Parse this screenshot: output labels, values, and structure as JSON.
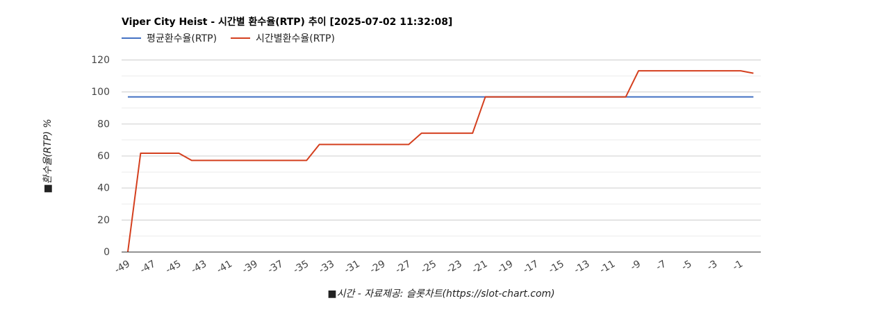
{
  "chart_data": {
    "type": "line",
    "title": "Viper City Heist - 시간별 환수율(RTP) 추이 [2025-07-02 11:32:08]",
    "ylabel": "■환수율(RTP) %",
    "xlabel": "■시간 - 자료제공: 슬롯차트(https://slot-chart.com)",
    "ylim": [
      0,
      120
    ],
    "yticks": [
      0,
      20,
      40,
      60,
      80,
      100,
      120
    ],
    "grid": true,
    "legend_position": "top-left",
    "x": [
      -49,
      -48,
      -47,
      -46,
      -45,
      -44,
      -43,
      -42,
      -41,
      -40,
      -39,
      -38,
      -37,
      -36,
      -35,
      -34,
      -33,
      -32,
      -31,
      -30,
      -29,
      -28,
      -27,
      -26,
      -25,
      -24,
      -23,
      -22,
      -21,
      -20,
      -19,
      -18,
      -17,
      -16,
      -15,
      -14,
      -13,
      -12,
      -11,
      -10,
      -9,
      -8,
      -7,
      -6,
      -5,
      -4,
      -3,
      -2,
      -1,
      0
    ],
    "xtick_labels": [
      "-49",
      "-47",
      "-45",
      "-43",
      "-41",
      "-39",
      "-37",
      "-35",
      "-33",
      "-31",
      "-29",
      "-27",
      "-25",
      "-23",
      "-21",
      "-19",
      "-17",
      "-15",
      "-13",
      "-11",
      "-9",
      "-7",
      "-5",
      "-3",
      "-1"
    ],
    "series": [
      {
        "name": "평균환수율(RTP)",
        "color": "#4472c4",
        "values": [
          96.7,
          96.7,
          96.7,
          96.7,
          96.7,
          96.7,
          96.7,
          96.7,
          96.7,
          96.7,
          96.7,
          96.7,
          96.7,
          96.7,
          96.7,
          96.7,
          96.7,
          96.7,
          96.7,
          96.7,
          96.7,
          96.7,
          96.7,
          96.7,
          96.7,
          96.7,
          96.7,
          96.7,
          96.7,
          96.7,
          96.7,
          96.7,
          96.7,
          96.7,
          96.7,
          96.7,
          96.7,
          96.7,
          96.7,
          96.7,
          96.7,
          96.7,
          96.7,
          96.7,
          96.7,
          96.7,
          96.7,
          96.7,
          96.7,
          96.7
        ]
      },
      {
        "name": "시간별환수율(RTP)",
        "color": "#d43f1e",
        "values": [
          0,
          61.5,
          61.5,
          61.5,
          61.5,
          57,
          57,
          57,
          57,
          57,
          57,
          57,
          57,
          57,
          57,
          67,
          67,
          67,
          67,
          67,
          67,
          67,
          67,
          74,
          74,
          74,
          74,
          74,
          96.7,
          96.7,
          96.7,
          96.7,
          96.7,
          96.7,
          96.7,
          96.7,
          96.7,
          96.7,
          96.7,
          96.7,
          113,
          113,
          113,
          113,
          113,
          113,
          113,
          113,
          113,
          111.5
        ]
      }
    ]
  }
}
